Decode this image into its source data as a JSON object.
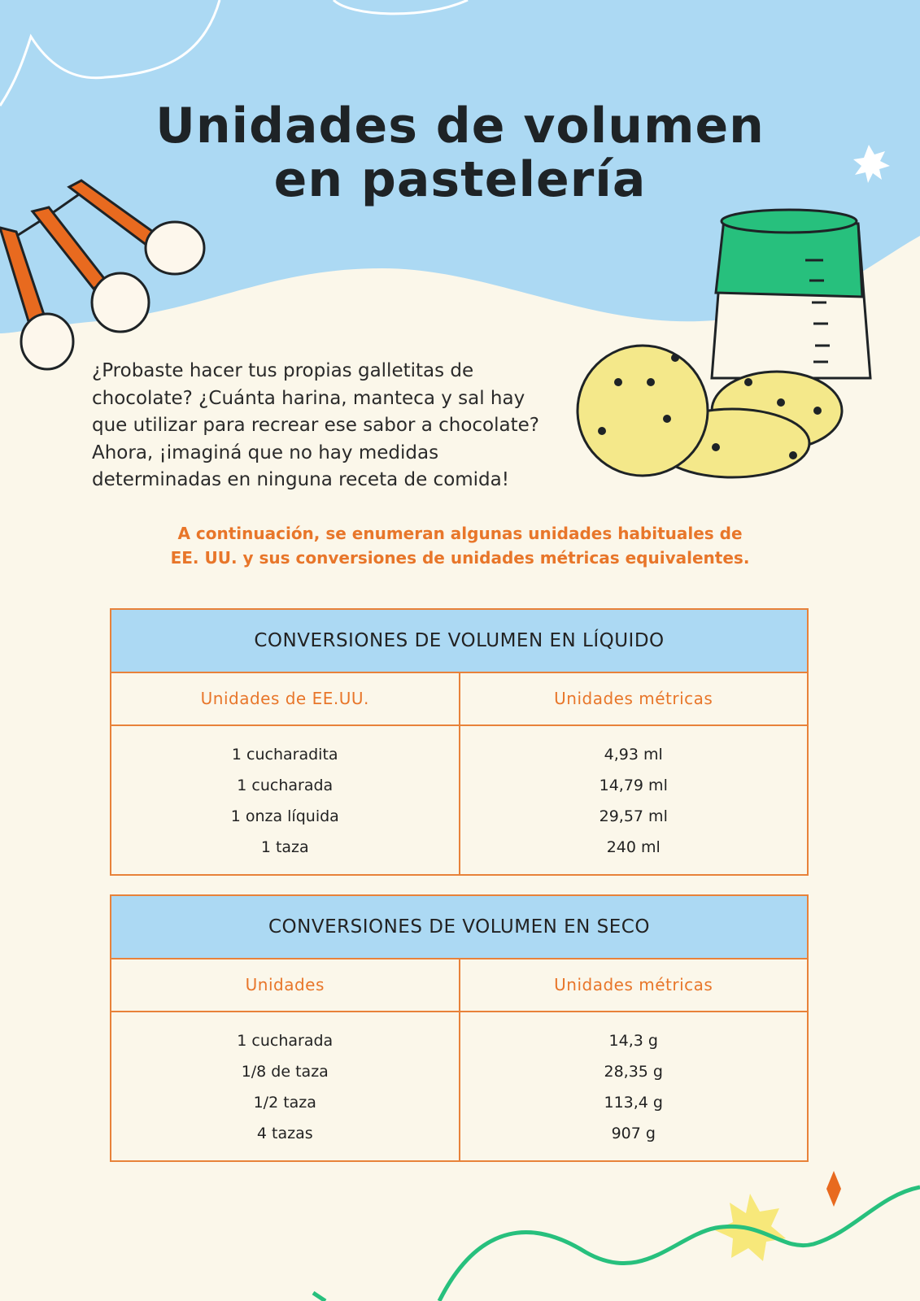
{
  "header": {
    "title_lines": [
      "Unidades de volumen",
      "en pastelería"
    ]
  },
  "intro": {
    "lines": [
      "¿Probaste hacer tus propias galletitas de",
      "chocolate? ¿Cuánta harina, manteca y sal hay",
      "que utilizar para recrear ese sabor a chocolate?",
      "Ahora, ¡imaginá que no hay medidas",
      "determinadas en ninguna receta de comida!"
    ]
  },
  "highlight": {
    "lines": [
      "A continuación, se enumeran algunas unidades habituales de",
      "EE. UU. y sus conversiones de unidades métricas equivalentes."
    ]
  },
  "tables": [
    {
      "title": "CONVERSIONES DE VOLUMEN EN LÍQUIDO",
      "headers": [
        "Unidades de EE.UU.",
        "Unidades métricas"
      ],
      "rows": [
        [
          "1 cucharadita",
          "4,93 ml"
        ],
        [
          "1 cucharada",
          "14,79 ml"
        ],
        [
          "1 onza líquida",
          "29,57 ml"
        ],
        [
          "1 taza",
          "240 ml"
        ]
      ]
    },
    {
      "title": "CONVERSIONES DE VOLUMEN EN SECO",
      "headers": [
        "Unidades",
        "Unidades métricas"
      ],
      "rows": [
        [
          "1 cucharada",
          "14,3 g"
        ],
        [
          "1/8 de taza",
          "28,35 g"
        ],
        [
          "1/2 taza",
          "113,4 g"
        ],
        [
          "4 tazas",
          "907 g"
        ]
      ]
    }
  ]
}
